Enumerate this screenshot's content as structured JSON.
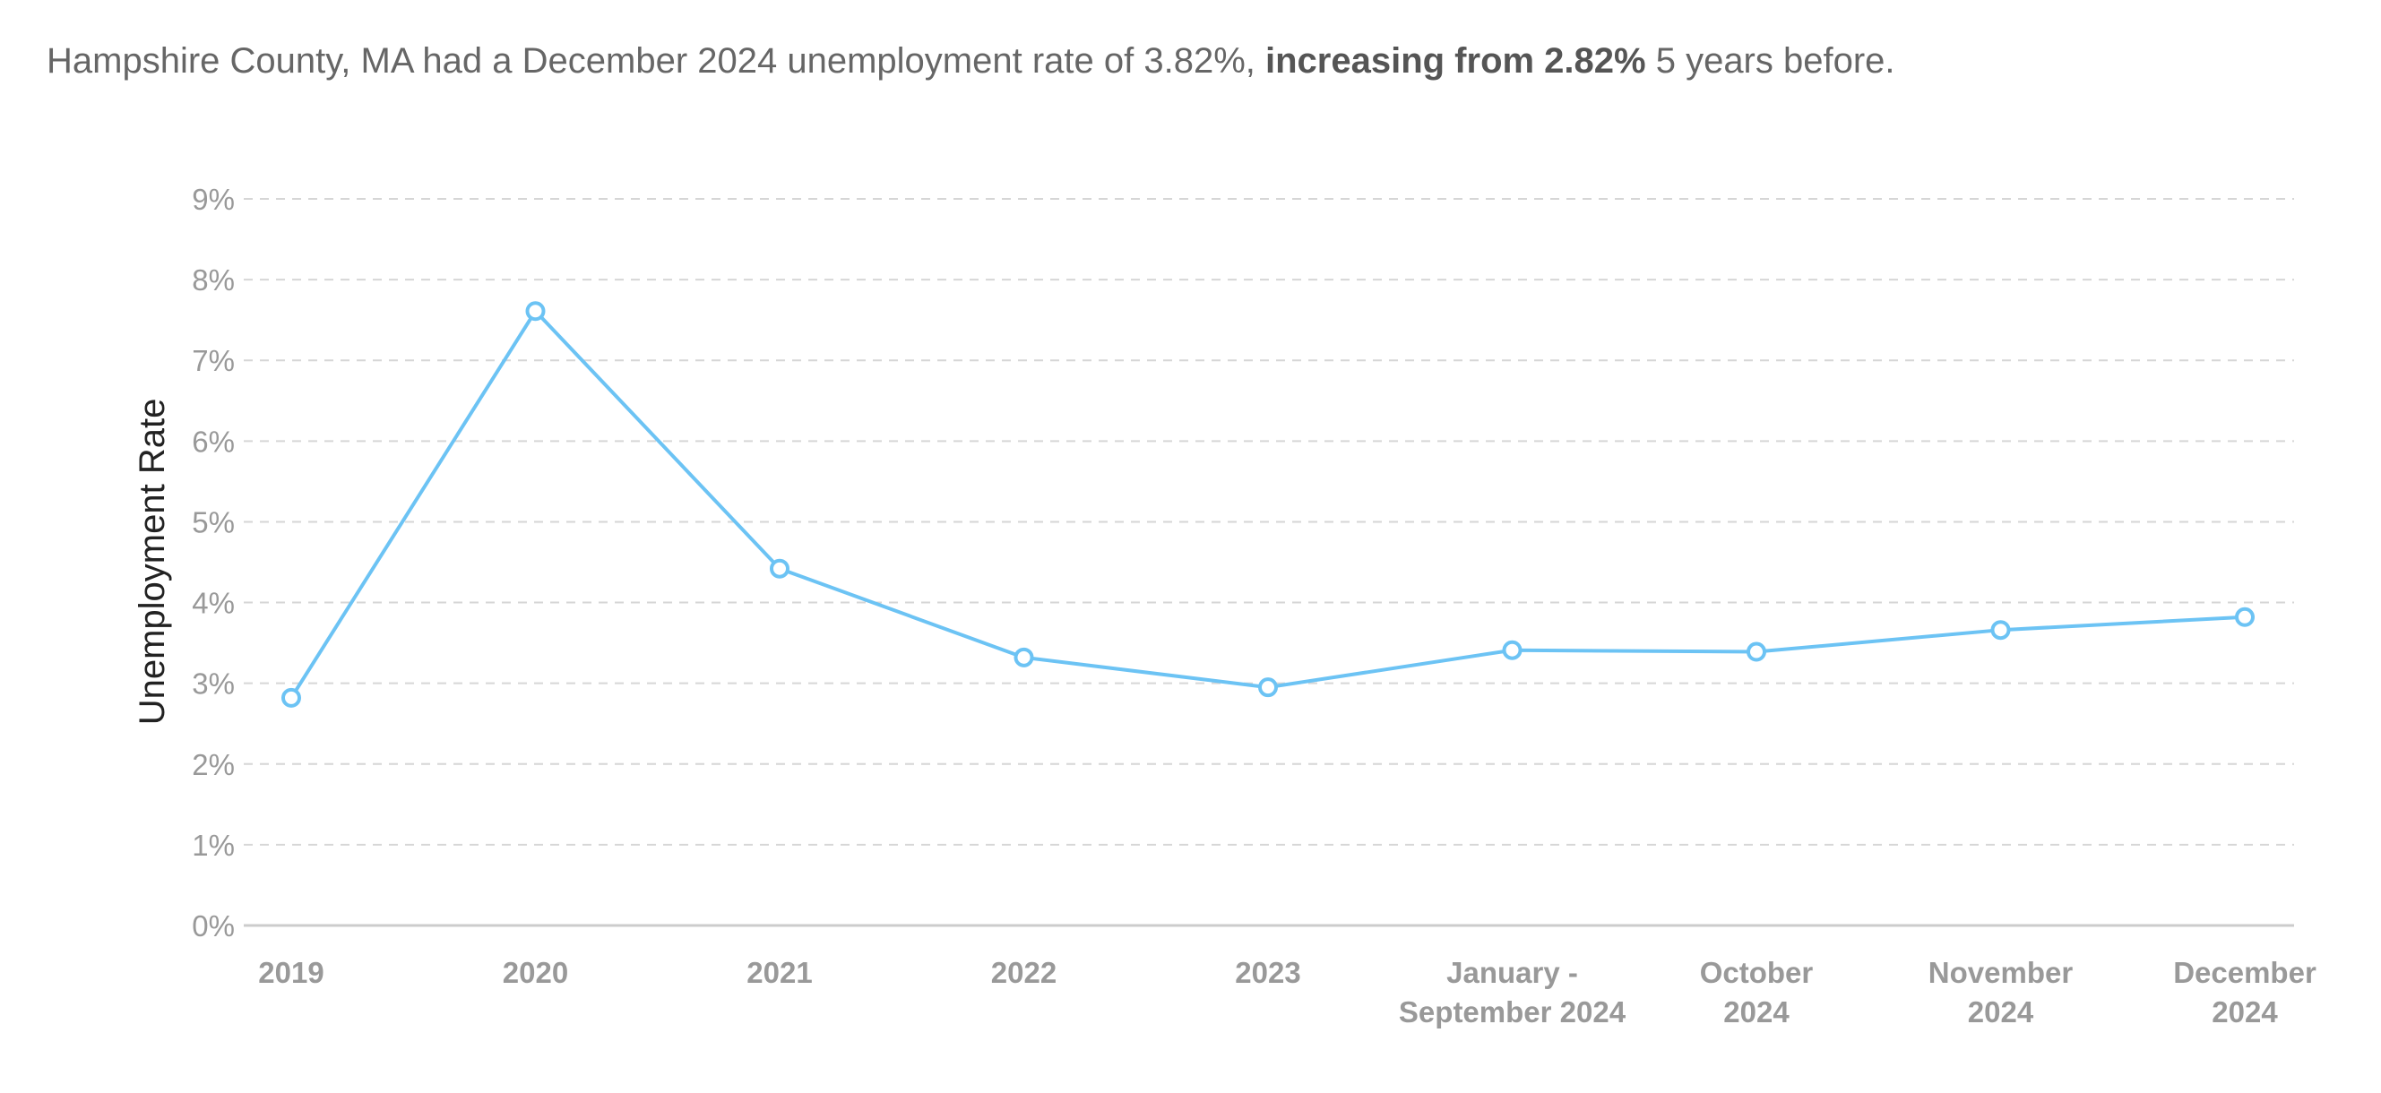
{
  "summary": {
    "prefix": "Hampshire County, MA had a December 2024 unemployment rate of 3.82%, ",
    "emphasis": "increasing from 2.82%",
    "suffix": " 5 years before."
  },
  "colors": {
    "series": "#6cc3f4",
    "grid": "#d6d6d6",
    "axis": "#cccccc",
    "tick_text": "#999999"
  },
  "chart_data": {
    "type": "line",
    "title": "",
    "xlabel": "",
    "ylabel": "Unemployment Rate",
    "categories": [
      [
        "2019"
      ],
      [
        "2020"
      ],
      [
        "2021"
      ],
      [
        "2022"
      ],
      [
        "2023"
      ],
      [
        "January -",
        "September 2024"
      ],
      [
        "October",
        "2024"
      ],
      [
        "November",
        "2024"
      ],
      [
        "December",
        "2024"
      ]
    ],
    "series": [
      {
        "values": [
          2.82,
          7.61,
          4.42,
          3.32,
          2.95,
          3.41,
          3.39,
          3.66,
          3.82
        ]
      }
    ],
    "ylim": [
      0,
      9
    ],
    "yticks": [
      0,
      1,
      2,
      3,
      4,
      5,
      6,
      7,
      8,
      9
    ],
    "ytick_suffix": "%",
    "grid": true,
    "legend": "none"
  }
}
